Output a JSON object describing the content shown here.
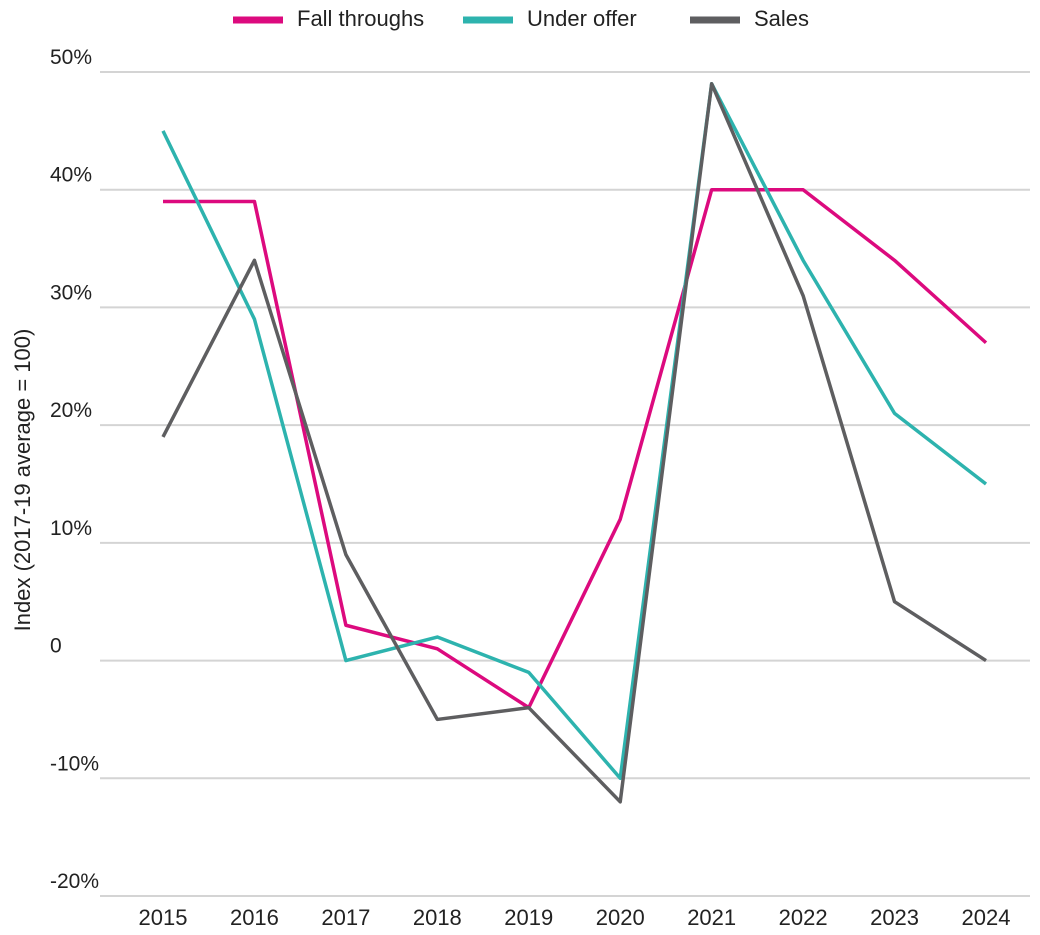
{
  "chart_data": {
    "type": "line",
    "ylabel": "Index (2017-19 average = 100)",
    "categories": [
      "2015",
      "2016",
      "2017",
      "2018",
      "2019",
      "2020",
      "2021",
      "2022",
      "2023",
      "2024"
    ],
    "series": [
      {
        "name": "Fall throughs",
        "color": "#dc0a7e",
        "values": [
          39,
          39,
          3,
          1,
          -4,
          12,
          40,
          40,
          34,
          27
        ]
      },
      {
        "name": "Under offer",
        "color": "#2db3ae",
        "values": [
          45,
          29,
          0,
          2,
          -1,
          -10,
          49,
          34,
          21,
          15
        ]
      },
      {
        "name": "Sales",
        "color": "#5e5e60",
        "values": [
          19,
          34,
          9,
          -5,
          -4,
          -12,
          49,
          31,
          5,
          0
        ]
      }
    ],
    "ylim": [
      -20,
      50
    ],
    "yticks": [
      {
        "value": -20,
        "label": "-20%"
      },
      {
        "value": -10,
        "label": "-10%"
      },
      0,
      {
        "value": 10,
        "label": "10%"
      },
      {
        "value": 20,
        "label": "20%"
      },
      {
        "value": 30,
        "label": "30%"
      },
      {
        "value": 40,
        "label": "40%"
      },
      {
        "value": 50,
        "label": "50%"
      }
    ],
    "grid": true,
    "legend": "top"
  }
}
